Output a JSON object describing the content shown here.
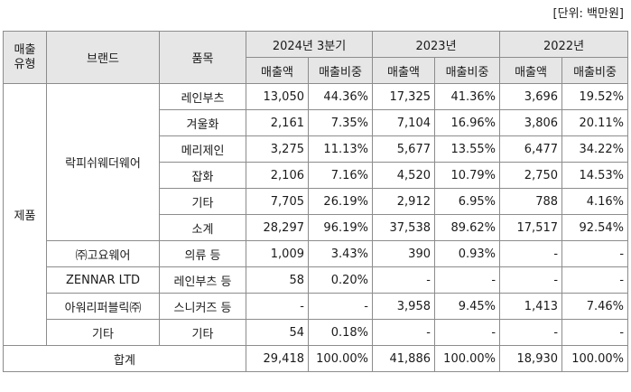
{
  "unit_label": "[단위: 백만원]",
  "header": {
    "type_col": "매출\n유형",
    "brand_col": "브랜드",
    "item_col": "품목",
    "periods": [
      "2024년 3분기",
      "2023년",
      "2022년"
    ],
    "sales": "매출액",
    "ratio": "매출비중"
  },
  "type_label": "제품",
  "brand_groups": [
    {
      "brand": "락피쉬웨더웨어",
      "rows": [
        {
          "item": "레인부츠",
          "v": [
            "13,050",
            "44.36%",
            "17,325",
            "41.36%",
            "3,696",
            "19.52%"
          ]
        },
        {
          "item": "겨울화",
          "v": [
            "2,161",
            "7.35%",
            "7,104",
            "16.96%",
            "3,806",
            "20.11%"
          ]
        },
        {
          "item": "메리제인",
          "v": [
            "3,275",
            "11.13%",
            "5,677",
            "13.55%",
            "6,477",
            "34.22%"
          ]
        },
        {
          "item": "잡화",
          "v": [
            "2,106",
            "7.16%",
            "4,520",
            "10.79%",
            "2,750",
            "14.53%"
          ]
        },
        {
          "item": "기타",
          "v": [
            "7,705",
            "26.19%",
            "2,912",
            "6.95%",
            "788",
            "4.16%"
          ]
        },
        {
          "item": "소계",
          "v": [
            "28,297",
            "96.19%",
            "37,538",
            "89.62%",
            "17,517",
            "92.54%"
          ]
        }
      ]
    },
    {
      "brand": "㈜고요웨어",
      "rows": [
        {
          "item": "의류 등",
          "v": [
            "1,009",
            "3.43%",
            "390",
            "0.93%",
            "-",
            "-"
          ]
        }
      ]
    },
    {
      "brand": "ZENNAR LTD",
      "rows": [
        {
          "item": "레인부츠 등",
          "v": [
            "58",
            "0.20%",
            "-",
            "-",
            "-",
            "-"
          ]
        }
      ]
    },
    {
      "brand": "아워리퍼블릭㈜",
      "rows": [
        {
          "item": "스니커즈 등",
          "v": [
            "-",
            "-",
            "3,958",
            "9.45%",
            "1,413",
            "7.46%"
          ]
        }
      ]
    },
    {
      "brand": "기타",
      "rows": [
        {
          "item": "기타",
          "v": [
            "54",
            "0.18%",
            "-",
            "-",
            "-",
            "-"
          ]
        }
      ]
    }
  ],
  "total": {
    "label": "합계",
    "v": [
      "29,418",
      "100.00%",
      "41,886",
      "100.00%",
      "18,930",
      "100.00%"
    ]
  }
}
